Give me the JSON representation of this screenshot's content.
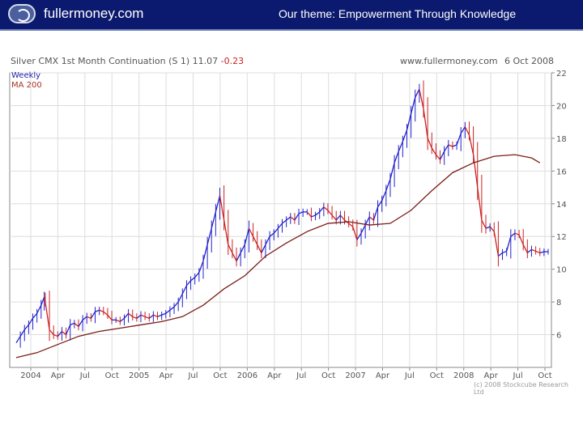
{
  "header": {
    "brand": "fullermoney.com",
    "theme": "Our theme: Empowerment Through Knowledge",
    "background": "#0b1a6e"
  },
  "chart": {
    "title_main": "Silver CMX 1st Month Continuation (S 1) 11.07",
    "title_change": "-0.23",
    "source": "www.fullermoney.com",
    "date": "6 Oct 2008",
    "legend_weekly": "Weekly",
    "legend_ma": "MA 200",
    "copyright": "(c) 2008 Stockcube Research Ltd"
  },
  "chart_data": {
    "type": "line",
    "title": "Silver CMX 1st Month Continuation (S 1) 11.07 -0.23",
    "xlabel": "",
    "ylabel": "",
    "ylim": [
      4,
      22
    ],
    "y_ticks": [
      22,
      20,
      18,
      16,
      14,
      12,
      10,
      8,
      6
    ],
    "x_ticks": [
      "2004",
      "Apr",
      "Jul",
      "Oct",
      "2005",
      "Apr",
      "Jul",
      "Oct",
      "2006",
      "Apr",
      "Jul",
      "Oct",
      "2007",
      "Apr",
      "Jul",
      "Oct",
      "2008",
      "Apr",
      "Jul",
      "Oct"
    ],
    "grid": true,
    "legend_position": "top-left",
    "series": [
      {
        "name": "Weekly",
        "color": "#2222cc",
        "down_color": "#cc2222",
        "x": [
          0,
          2,
          4,
          6,
          8,
          10,
          12,
          13.5,
          14,
          16,
          18,
          20,
          22,
          24,
          26,
          28,
          30,
          32,
          34,
          36,
          38,
          40,
          42,
          44,
          46,
          48,
          50,
          52,
          54,
          56,
          58,
          60,
          62,
          64,
          66,
          68,
          70,
          72,
          74,
          76,
          78,
          80,
          82,
          84,
          86,
          88,
          90,
          92,
          94,
          96,
          98,
          100,
          102,
          104,
          106,
          108,
          110,
          112,
          114,
          116,
          118,
          120,
          122,
          124,
          126,
          128,
          130,
          132,
          134,
          136,
          138,
          140,
          142,
          144,
          146,
          148,
          150,
          152,
          154,
          156,
          158,
          160,
          162,
          164,
          166,
          168,
          170,
          172,
          174,
          176,
          178,
          180,
          182,
          184,
          186,
          188,
          190,
          192,
          194,
          196,
          198,
          200,
          202,
          204,
          206,
          208,
          210,
          212,
          214,
          216,
          218,
          220,
          222,
          224,
          226,
          228,
          230,
          232,
          234,
          236,
          238,
          240,
          242,
          244,
          246,
          248,
          250,
          252,
          254,
          256
        ],
        "values": [
          5.5,
          5.9,
          6.3,
          6.6,
          7.0,
          7.3,
          7.8,
          8.3,
          8.0,
          6.3,
          6.0,
          5.9,
          6.2,
          6.0,
          6.6,
          6.7,
          6.5,
          6.9,
          7.1,
          7.0,
          7.4,
          7.5,
          7.4,
          7.2,
          6.9,
          6.9,
          6.8,
          7.0,
          7.3,
          7.1,
          7.0,
          7.2,
          7.1,
          7.0,
          7.2,
          7.1,
          7.2,
          7.3,
          7.5,
          7.7,
          8.0,
          8.5,
          9.0,
          9.3,
          9.5,
          9.8,
          10.5,
          11.5,
          12.5,
          13.5,
          14.5,
          13.0,
          11.5,
          11.0,
          10.5,
          11.0,
          11.5,
          12.5,
          12.0,
          11.5,
          11.0,
          11.5,
          12.0,
          12.2,
          12.5,
          12.8,
          13.0,
          13.2,
          13.0,
          13.4,
          13.5,
          13.5,
          13.2,
          13.3,
          13.5,
          13.8,
          13.6,
          13.3,
          13.0,
          13.3,
          13.0,
          12.8,
          12.6,
          11.8,
          12.2,
          12.7,
          13.2,
          13.0,
          13.8,
          14.2,
          14.8,
          15.5,
          16.5,
          17.2,
          17.8,
          18.5,
          19.5,
          20.5,
          21.0,
          19.8,
          18.0,
          17.4,
          17.0,
          16.7,
          17.2,
          17.6,
          17.5,
          17.6,
          18.3,
          18.7,
          18.2,
          17.0,
          15.0,
          13.0,
          12.5,
          12.6,
          12.3,
          10.8,
          11.0,
          11.1,
          12.0,
          12.2,
          12.1,
          11.5,
          11.0,
          11.2,
          11.1,
          11.0,
          11.07,
          11.07
        ]
      },
      {
        "name": "MA 200",
        "color": "#7a1d16",
        "x": [
          0,
          10,
          20,
          30,
          40,
          50,
          60,
          70,
          80,
          90,
          100,
          110,
          120,
          130,
          140,
          150,
          160,
          170,
          180,
          190,
          200,
          210,
          220,
          230,
          240,
          248,
          252
        ],
        "values": [
          4.6,
          4.9,
          5.4,
          5.9,
          6.2,
          6.4,
          6.6,
          6.8,
          7.1,
          7.8,
          8.8,
          9.6,
          10.8,
          11.6,
          12.3,
          12.8,
          12.9,
          12.7,
          12.8,
          13.6,
          14.8,
          15.9,
          16.5,
          16.9,
          17.0,
          16.8,
          16.5
        ]
      }
    ]
  }
}
